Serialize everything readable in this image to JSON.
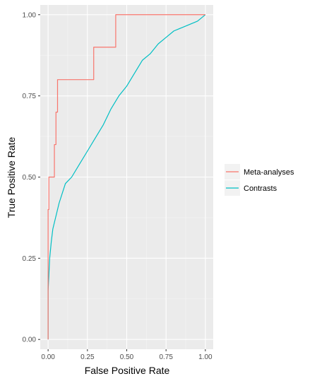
{
  "chart_data": {
    "type": "line",
    "xlabel": "False Positive Rate",
    "ylabel": "True Positive Rate",
    "xlim": [
      -0.05,
      1.05
    ],
    "ylim": [
      -0.03,
      1.03
    ],
    "x_ticks": [
      0.0,
      0.25,
      0.5,
      0.75,
      1.0
    ],
    "x_tick_labels": [
      "0.00",
      "0.25",
      "0.50",
      "0.75",
      "1.00"
    ],
    "y_ticks": [
      0.0,
      0.25,
      0.5,
      0.75,
      1.0
    ],
    "y_tick_labels": [
      "0.00",
      "0.25",
      "0.50",
      "0.75",
      "1.00"
    ],
    "grid": true,
    "legend_position": "right",
    "series": [
      {
        "name": "Meta-analyses",
        "color": "#F8766D",
        "step": true,
        "points": [
          [
            0.0,
            0.0
          ],
          [
            0.0,
            0.4
          ],
          [
            0.005,
            0.4
          ],
          [
            0.005,
            0.5
          ],
          [
            0.04,
            0.5
          ],
          [
            0.04,
            0.6
          ],
          [
            0.05,
            0.6
          ],
          [
            0.05,
            0.7
          ],
          [
            0.06,
            0.7
          ],
          [
            0.06,
            0.8
          ],
          [
            0.29,
            0.8
          ],
          [
            0.29,
            0.9
          ],
          [
            0.43,
            0.9
          ],
          [
            0.43,
            1.0
          ],
          [
            1.0,
            1.0
          ]
        ]
      },
      {
        "name": "Contrasts",
        "color": "#00BFC4",
        "step": false,
        "points": [
          [
            0.0,
            0.0
          ],
          [
            0.0,
            0.15
          ],
          [
            0.005,
            0.2
          ],
          [
            0.01,
            0.25
          ],
          [
            0.02,
            0.3
          ],
          [
            0.03,
            0.34
          ],
          [
            0.05,
            0.38
          ],
          [
            0.07,
            0.42
          ],
          [
            0.09,
            0.45
          ],
          [
            0.11,
            0.48
          ],
          [
            0.15,
            0.5
          ],
          [
            0.2,
            0.54
          ],
          [
            0.25,
            0.58
          ],
          [
            0.3,
            0.62
          ],
          [
            0.35,
            0.66
          ],
          [
            0.4,
            0.71
          ],
          [
            0.45,
            0.75
          ],
          [
            0.5,
            0.78
          ],
          [
            0.55,
            0.82
          ],
          [
            0.6,
            0.86
          ],
          [
            0.65,
            0.88
          ],
          [
            0.7,
            0.91
          ],
          [
            0.75,
            0.93
          ],
          [
            0.8,
            0.95
          ],
          [
            0.85,
            0.96
          ],
          [
            0.9,
            0.97
          ],
          [
            0.95,
            0.98
          ],
          [
            1.0,
            1.0
          ]
        ]
      }
    ]
  }
}
